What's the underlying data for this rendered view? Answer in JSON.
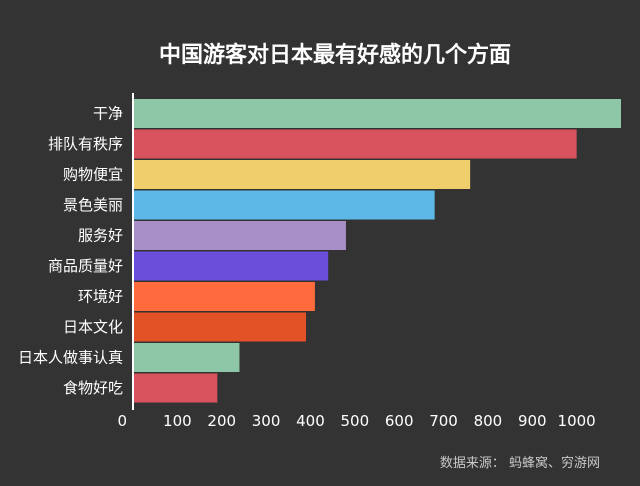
{
  "chart_data": {
    "type": "bar",
    "orientation": "horizontal",
    "title": "中国游客对日本最有好感的几个方面",
    "categories": [
      "干净",
      "排队有秩序",
      "购物便宜",
      "景色美丽",
      "服务好",
      "商品质量好",
      "环境好",
      "日本文化",
      "日本人做事认真",
      "食物好吃"
    ],
    "values": [
      1100,
      1000,
      760,
      680,
      480,
      440,
      410,
      390,
      240,
      190
    ],
    "colors": [
      "#8EC6A8",
      "#D9535F",
      "#F0CE6C",
      "#5DB8E8",
      "#A98FC8",
      "#6A4FDB",
      "#FF6B3D",
      "#E35227",
      "#8EC6A8",
      "#D9535F"
    ],
    "xlim": [
      0,
      1100
    ],
    "xticks": [
      0,
      100,
      200,
      300,
      400,
      500,
      600,
      700,
      800,
      900,
      1000
    ],
    "xtick_labels": [
      "0",
      "100",
      "200",
      "300",
      "400",
      "500",
      "600",
      "700",
      "800",
      "900",
      "1000"
    ],
    "grid": false,
    "legend": "none"
  },
  "source": "数据来源： 蚂蜂窝、穷游网"
}
